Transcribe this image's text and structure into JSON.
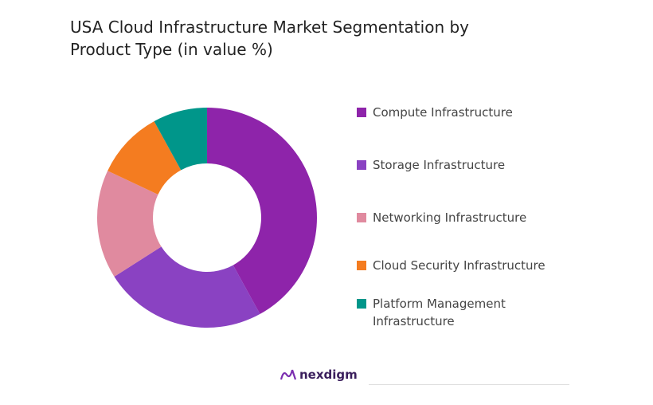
{
  "chart_data": {
    "type": "donut",
    "title": "USA Cloud Infrastructure Market Segmentation by Product Type (in value %)",
    "categories": [
      "Compute Infrastructure",
      "Storage Infrastructure",
      "Networking Infrastructure",
      "Cloud Security Infrastructure",
      "Platform Management Infrastructure"
    ],
    "values": [
      42,
      24,
      16,
      10,
      8
    ],
    "colors": [
      "#8e24aa",
      "#8a42c2",
      "#e08a9f",
      "#f47c20",
      "#00968a"
    ],
    "legend": "right"
  },
  "brand": "nexdigm"
}
